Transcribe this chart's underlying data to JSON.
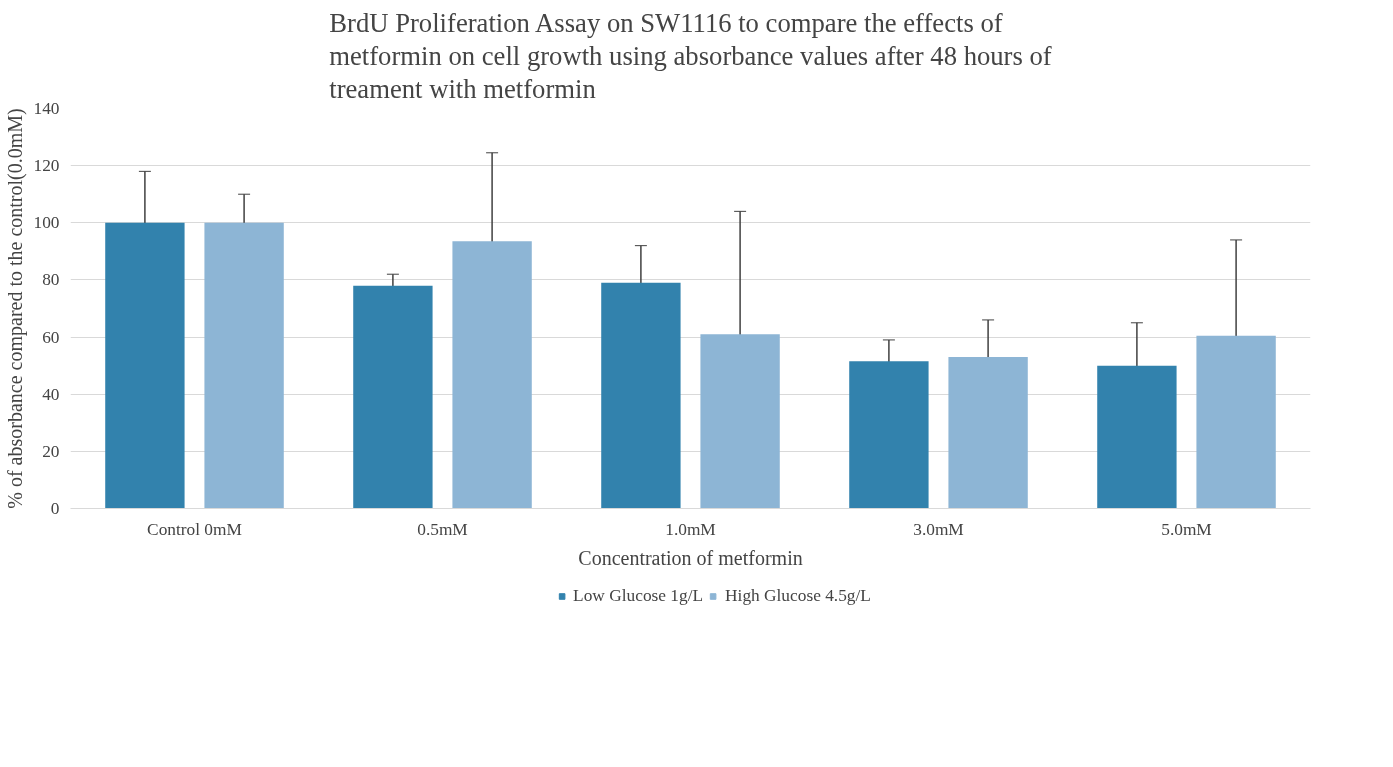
{
  "chart_data": {
    "type": "bar",
    "title": "BrdU Proliferation Assay on SW1116 to compare the effects of metformin on cell growth using absorbance values after 48 hours of treament with metformin",
    "xlabel": "Concentration of metformin",
    "ylabel": "% of absorbance compared to the control(0.0mM)",
    "categories": [
      "Control 0mM",
      "0.5mM",
      "1.0mM",
      "3.0mM",
      "5.0mM"
    ],
    "series": [
      {
        "name": "Low Glucose 1g/L",
        "color": "#3282ad",
        "values": [
          100,
          78,
          79,
          51.5,
          50
        ],
        "errors": [
          18,
          4,
          13,
          7.5,
          15
        ]
      },
      {
        "name": "High Glucose 4.5g/L",
        "color": "#8db5d5",
        "values": [
          100,
          93.5,
          61,
          53,
          60.5
        ],
        "errors": [
          10,
          31,
          43,
          13,
          33.5
        ]
      }
    ],
    "ylim": [
      0,
      140
    ],
    "yticks": [
      0,
      20,
      40,
      60,
      80,
      100,
      120,
      140
    ],
    "grid": "y",
    "legend": "bottom"
  }
}
